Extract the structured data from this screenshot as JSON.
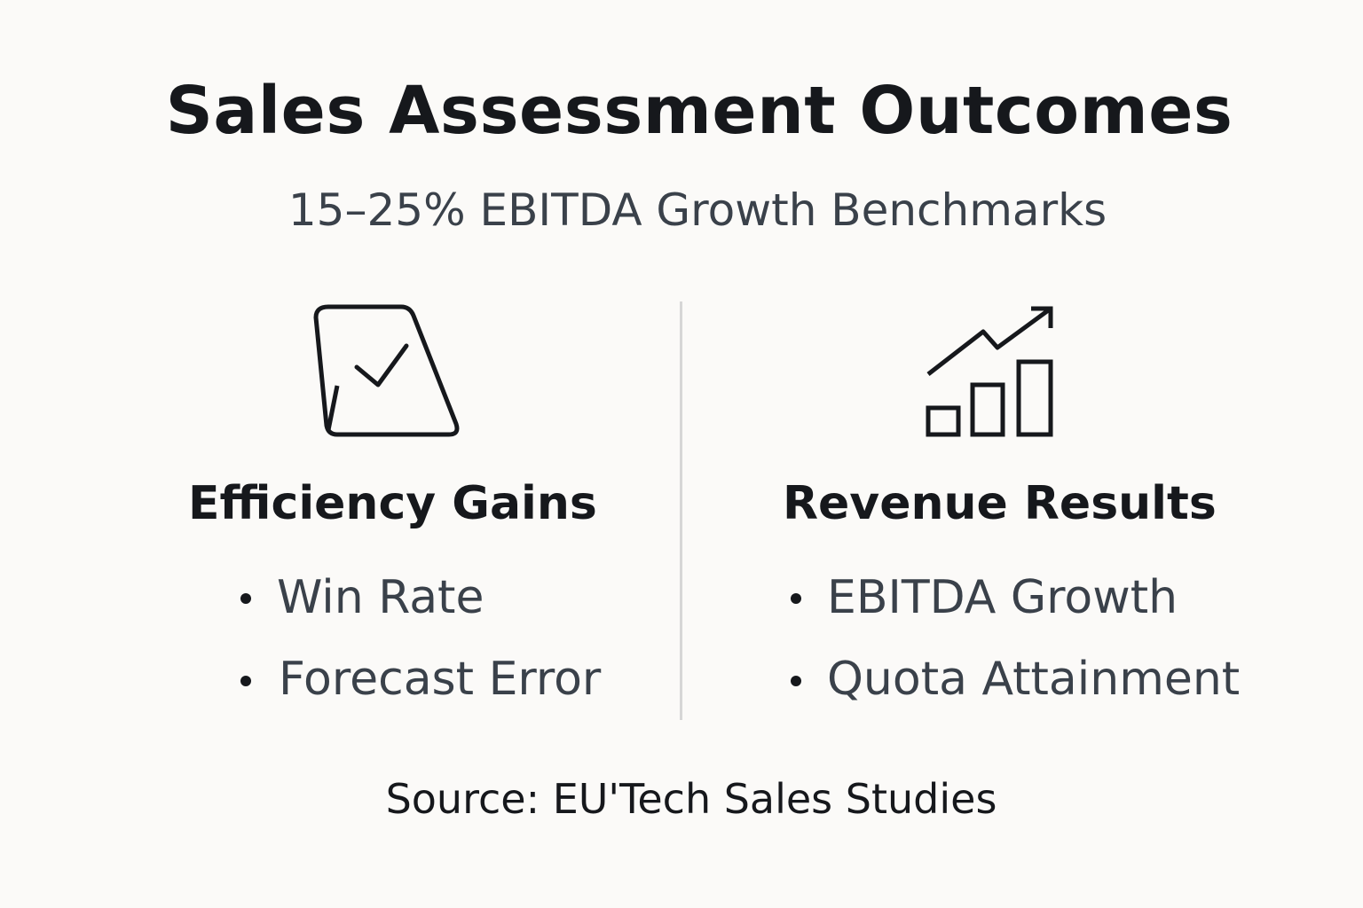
{
  "header": {
    "title": "Sales Assessment Outcomes",
    "subtitle": "15–25% EBITDA Growth Benchmarks"
  },
  "columns": [
    {
      "heading": "Efficiency Gains",
      "items": [
        "Win Rate",
        "Forecast Error"
      ]
    },
    {
      "heading": "Revenue Results",
      "items": [
        "EBITDA Growth",
        "Quota Attainment"
      ]
    }
  ],
  "footer": {
    "source": "Source: EU'Tech Sales Studies"
  }
}
